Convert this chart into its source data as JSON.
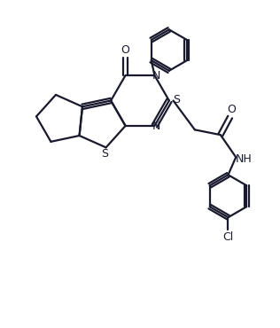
{
  "bg_color": "#ffffff",
  "line_color": "#1a1a2e",
  "line_width": 1.6,
  "figsize": [
    3.16,
    3.7
  ],
  "dpi": 100,
  "xlim": [
    0,
    8
  ],
  "ylim": [
    0,
    9.5
  ]
}
